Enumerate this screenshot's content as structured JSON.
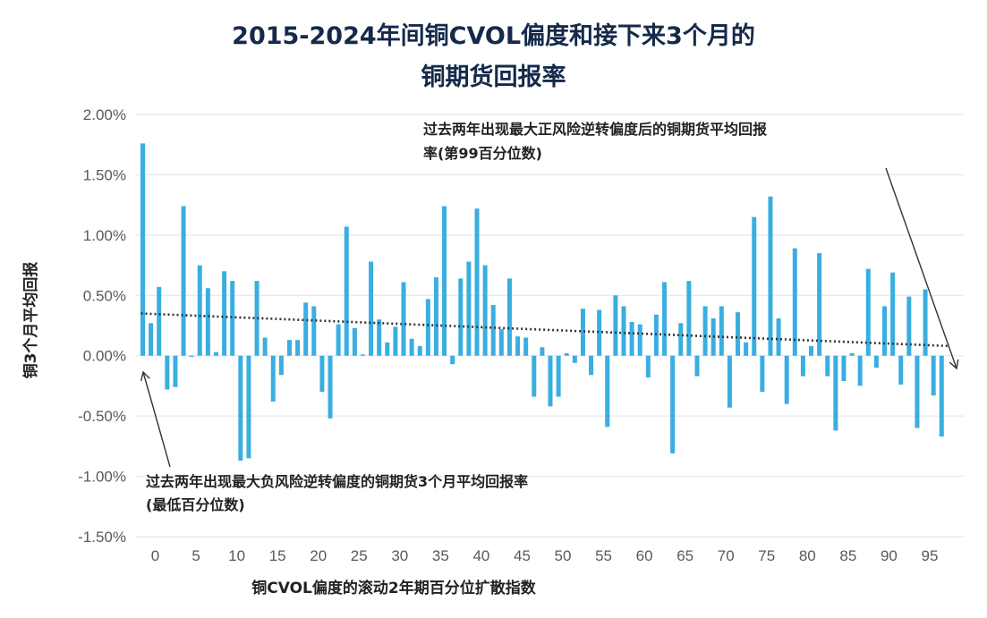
{
  "chart_data": {
    "type": "bar",
    "title_line1": "2015-2024年间铜CVOL偏度和接下来3个月的",
    "title_line2": "铜期货回报率",
    "xlabel": "铜CVOL偏度的滚动2年期百分位扩散指数",
    "ylabel": "铜3个月平均回报",
    "ylim": [
      -1.5,
      2.0
    ],
    "yticks": [
      "2.00%",
      "1.50%",
      "1.00%",
      "0.50%",
      "0.00%",
      "-0.50%",
      "-1.00%",
      "-1.50%"
    ],
    "xticks": [
      "0",
      "5",
      "10",
      "15",
      "20",
      "25",
      "30",
      "35",
      "40",
      "45",
      "50",
      "55",
      "60",
      "65",
      "70",
      "75",
      "80",
      "85",
      "90",
      "95"
    ],
    "x": [
      0,
      1,
      2,
      3,
      4,
      5,
      6,
      7,
      8,
      9,
      10,
      11,
      12,
      13,
      14,
      15,
      16,
      17,
      18,
      19,
      20,
      21,
      22,
      23,
      24,
      25,
      26,
      27,
      28,
      29,
      30,
      31,
      32,
      33,
      34,
      35,
      36,
      37,
      38,
      39,
      40,
      41,
      42,
      43,
      44,
      45,
      46,
      47,
      48,
      49,
      50,
      51,
      52,
      53,
      54,
      55,
      56,
      57,
      58,
      59,
      60,
      61,
      62,
      63,
      64,
      65,
      66,
      67,
      68,
      69,
      70,
      71,
      72,
      73,
      74,
      75,
      76,
      77,
      78,
      79,
      80,
      81,
      82,
      83,
      84,
      85,
      86,
      87,
      88,
      89,
      90,
      91,
      92,
      93,
      94,
      95,
      96,
      97,
      98,
      99
    ],
    "values": [
      1.76,
      0.27,
      0.57,
      -0.28,
      -0.26,
      1.24,
      -0.01,
      0.75,
      0.56,
      0.03,
      0.7,
      0.62,
      -0.87,
      -0.85,
      0.62,
      0.15,
      -0.38,
      -0.16,
      0.13,
      0.13,
      0.44,
      0.41,
      -0.3,
      -0.52,
      0.26,
      1.07,
      0.23,
      0.01,
      0.78,
      0.3,
      0.11,
      0.24,
      0.61,
      0.14,
      0.08,
      0.47,
      0.65,
      1.24,
      -0.07,
      0.64,
      0.78,
      1.22,
      0.75,
      0.42,
      0.22,
      0.64,
      0.16,
      0.15,
      -0.34,
      0.07,
      -0.42,
      -0.34,
      0.02,
      -0.06,
      0.39,
      -0.16,
      0.38,
      -0.59,
      0.5,
      0.41,
      0.28,
      0.26,
      -0.18,
      0.34,
      0.61,
      -0.81,
      0.27,
      0.62,
      -0.17,
      0.41,
      0.31,
      0.41,
      -0.43,
      0.36,
      0.11,
      1.15,
      -0.3,
      1.32,
      0.31,
      -0.4,
      0.89,
      -0.17,
      0.08,
      0.85,
      -0.17,
      -0.62,
      -0.21,
      0.02,
      -0.25,
      0.72,
      -0.1,
      0.41,
      0.69,
      -0.24,
      0.49,
      -0.6,
      0.55,
      -0.33,
      -0.67,
      0.0
    ],
    "trendline": {
      "start": 0.35,
      "end": 0.08
    },
    "annotations": [
      {
        "lines": [
          "过去两年出现最大正风险逆转偏度后的铜期货平均回报",
          "率(第99百分位数)"
        ]
      },
      {
        "lines": [
          "过去两年出现最大负风险逆转偏度的铜期货3个月平均回报率",
          "(最低百分位数)"
        ]
      }
    ],
    "grid": true,
    "bar_color": "#3aaee0",
    "title_color": "#15294a"
  }
}
